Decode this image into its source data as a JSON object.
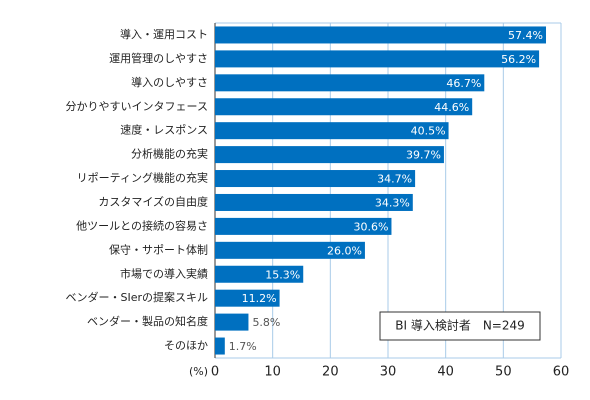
{
  "chart_data": {
    "type": "bar",
    "orientation": "horizontal",
    "categories": [
      "導入・運用コスト",
      "運用管理のしやすさ",
      "導入のしやすさ",
      "分かりやすいインタフェース",
      "速度・レスポンス",
      "分析機能の充実",
      "リポーティング機能の充実",
      "カスタマイズの自由度",
      "他ツールとの接続の容易さ",
      "保守・サポート体制",
      "市場での導入実績",
      "ベンダー・SIerの提案スキル",
      "ベンダー・製品の知名度",
      "そのほか"
    ],
    "values": [
      57.4,
      56.2,
      46.7,
      44.6,
      40.5,
      39.7,
      34.7,
      34.3,
      30.6,
      26.0,
      15.3,
      11.2,
      5.8,
      1.7
    ],
    "value_labels": [
      "57.4%",
      "56.2%",
      "46.7%",
      "44.6%",
      "40.5%",
      "39.7%",
      "34.7%",
      "34.3%",
      "30.6%",
      "26.0%",
      "15.3%",
      "11.2%",
      "5.8%",
      "1.7%"
    ],
    "color": "#0070c0",
    "x_label": "(%)",
    "xlim": [
      0,
      60
    ],
    "xticks": [
      0,
      10,
      20,
      30,
      40,
      50,
      60
    ],
    "grid": true,
    "annotation": "BI 導入検討者　N=249"
  }
}
